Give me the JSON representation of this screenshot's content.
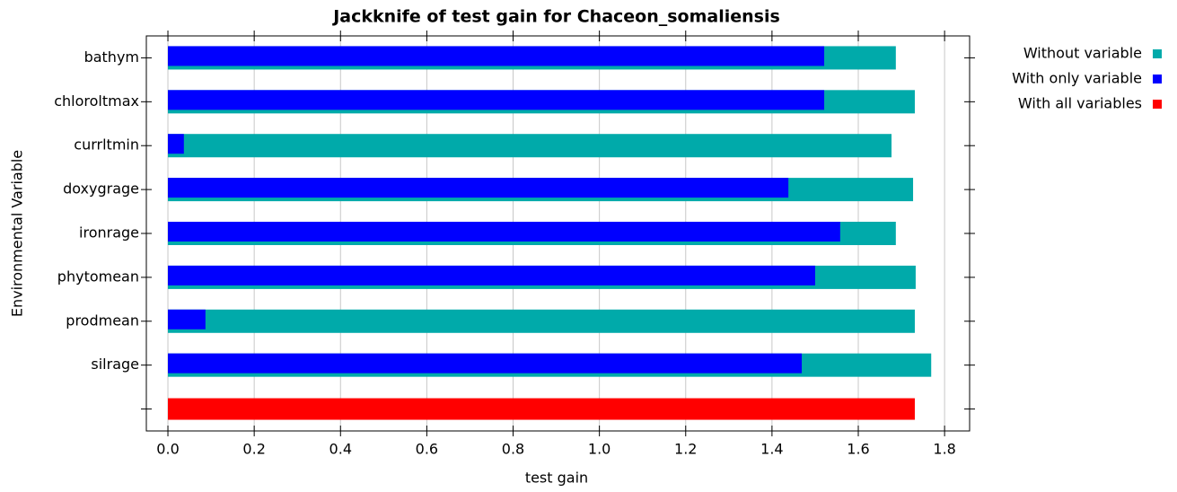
{
  "chart_data": {
    "type": "bar",
    "orientation": "horizontal",
    "title": "Jackknife of test gain for Chaceon_somaliensis",
    "x_label": "test gain",
    "y_label": "Environmental Variable",
    "categories": [
      "bathym",
      "chloroltmax",
      "currltmin",
      "doxygrage",
      "ironrage",
      "phytomean",
      "prodmean",
      "silrage",
      null
    ],
    "series": [
      {
        "name": "Without variable",
        "color": "#00aaaa",
        "values": [
          1.687,
          1.731,
          1.677,
          1.727,
          1.687,
          1.733,
          1.731,
          1.769,
          null
        ]
      },
      {
        "name": "With only variable",
        "color": "#0000ff",
        "values": [
          1.521,
          1.521,
          0.037,
          1.438,
          1.558,
          1.5,
          0.087,
          1.469,
          null
        ]
      },
      {
        "name": "With all variables",
        "color": "#ff0000",
        "values": [
          null,
          null,
          null,
          null,
          null,
          null,
          null,
          null,
          1.731
        ]
      }
    ],
    "xlim": [
      -0.05,
      1.858
    ],
    "xticks": [
      {
        "value": 0,
        "label": "0.0"
      },
      0.2,
      0.4,
      0.6,
      0.8,
      {
        "value": 1,
        "label": "1.0"
      },
      1.2,
      1.4,
      1.6,
      1.8
    ],
    "grid": true
  }
}
